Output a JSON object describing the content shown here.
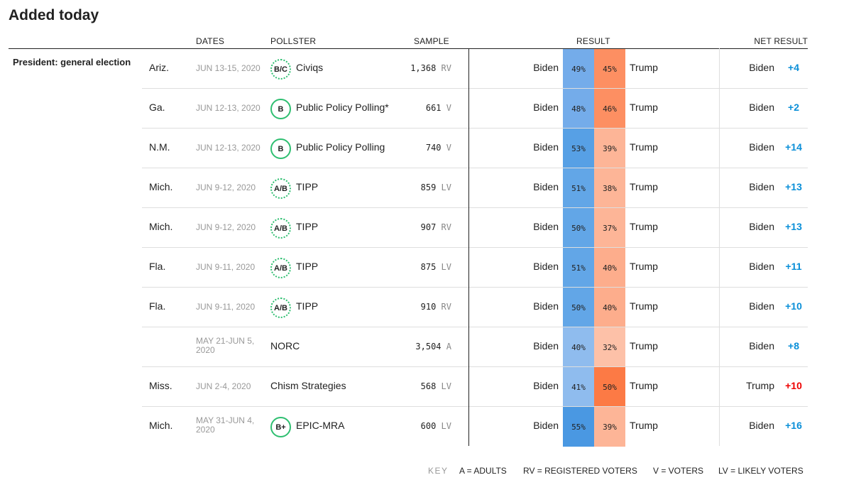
{
  "title": "Added today",
  "headers": {
    "dates": "DATES",
    "pollster": "POLLSTER",
    "sample": "SAMPLE",
    "result": "RESULT",
    "net": "NET RESULT"
  },
  "section_label": "President: general election",
  "colors": {
    "grade_ring": "#2fbf71",
    "biden_net": "#0a8fd8",
    "trump_net": "#ee0000"
  },
  "rows": [
    {
      "state": "Ariz.",
      "dates": "JUN 13-15, 2020",
      "grade": "B/C",
      "grade_style": "dotted",
      "pollster": "Civiqs",
      "sample": "1,368",
      "pop": "RV",
      "biden_label": "Biden",
      "biden": "49%",
      "trump": "45%",
      "trump_label": "Trump",
      "biden_color": "#74acea",
      "trump_color": "#fd8f62",
      "net_name": "Biden",
      "net_value": "+4",
      "net_party": "biden"
    },
    {
      "state": "Ga.",
      "dates": "JUN 12-13, 2020",
      "grade": "B",
      "grade_style": "solid",
      "pollster": "Public Policy Polling*",
      "sample": "661",
      "pop": "V",
      "biden_label": "Biden",
      "biden": "48%",
      "trump": "46%",
      "trump_label": "Trump",
      "biden_color": "#74acea",
      "trump_color": "#fd8f62",
      "net_name": "Biden",
      "net_value": "+2",
      "net_party": "biden"
    },
    {
      "state": "N.M.",
      "dates": "JUN 12-13, 2020",
      "grade": "B",
      "grade_style": "solid",
      "pollster": "Public Policy Polling",
      "sample": "740",
      "pop": "V",
      "biden_label": "Biden",
      "biden": "53%",
      "trump": "39%",
      "trump_label": "Trump",
      "biden_color": "#57a0e5",
      "trump_color": "#fdb597",
      "net_name": "Biden",
      "net_value": "+14",
      "net_party": "biden"
    },
    {
      "state": "Mich.",
      "dates": "JUN 9-12, 2020",
      "grade": "A/B",
      "grade_style": "dotted",
      "pollster": "TIPP",
      "sample": "859",
      "pop": "LV",
      "biden_label": "Biden",
      "biden": "51%",
      "trump": "38%",
      "trump_label": "Trump",
      "biden_color": "#62a6e7",
      "trump_color": "#fdb597",
      "net_name": "Biden",
      "net_value": "+13",
      "net_party": "biden"
    },
    {
      "state": "Mich.",
      "dates": "JUN 9-12, 2020",
      "grade": "A/B",
      "grade_style": "dotted",
      "pollster": "TIPP",
      "sample": "907",
      "pop": "RV",
      "biden_label": "Biden",
      "biden": "50%",
      "trump": "37%",
      "trump_label": "Trump",
      "biden_color": "#62a6e7",
      "trump_color": "#fdb597",
      "net_name": "Biden",
      "net_value": "+13",
      "net_party": "biden"
    },
    {
      "state": "Fla.",
      "dates": "JUN 9-11, 2020",
      "grade": "A/B",
      "grade_style": "dotted",
      "pollster": "TIPP",
      "sample": "875",
      "pop": "LV",
      "biden_label": "Biden",
      "biden": "51%",
      "trump": "40%",
      "trump_label": "Trump",
      "biden_color": "#62a6e7",
      "trump_color": "#fdad8c",
      "net_name": "Biden",
      "net_value": "+11",
      "net_party": "biden"
    },
    {
      "state": "Fla.",
      "dates": "JUN 9-11, 2020",
      "grade": "A/B",
      "grade_style": "dotted",
      "pollster": "TIPP",
      "sample": "910",
      "pop": "RV",
      "biden_label": "Biden",
      "biden": "50%",
      "trump": "40%",
      "trump_label": "Trump",
      "biden_color": "#62a6e7",
      "trump_color": "#fdad8c",
      "net_name": "Biden",
      "net_value": "+10",
      "net_party": "biden"
    },
    {
      "state": "",
      "dates": "MAY 21-JUN 5, 2020",
      "grade": "",
      "grade_style": "none",
      "pollster": "NORC",
      "sample": "3,504",
      "pop": "A",
      "biden_label": "Biden",
      "biden": "40%",
      "trump": "32%",
      "trump_label": "Trump",
      "biden_color": "#8fbcee",
      "trump_color": "#fdc1a8",
      "net_name": "Biden",
      "net_value": "+8",
      "net_party": "biden"
    },
    {
      "state": "Miss.",
      "dates": "JUN 2-4, 2020",
      "grade": "",
      "grade_style": "none",
      "pollster": "Chism Strategies",
      "sample": "568",
      "pop": "LV",
      "biden_label": "Biden",
      "biden": "41%",
      "trump": "50%",
      "trump_label": "Trump",
      "biden_color": "#8fbcee",
      "trump_color": "#fc7a45",
      "net_name": "Trump",
      "net_value": "+10",
      "net_party": "trump"
    },
    {
      "state": "Mich.",
      "dates": "MAY 31-JUN 4, 2020",
      "grade": "B+",
      "grade_style": "solid",
      "pollster": "EPIC-MRA",
      "sample": "600",
      "pop": "LV",
      "biden_label": "Biden",
      "biden": "55%",
      "trump": "39%",
      "trump_label": "Trump",
      "biden_color": "#4a98e2",
      "trump_color": "#fdb597",
      "net_name": "Biden",
      "net_value": "+16",
      "net_party": "biden"
    }
  ],
  "key": {
    "label": "KEY",
    "items": [
      "A = ADULTS",
      "RV = REGISTERED VOTERS",
      "V = VOTERS",
      "LV = LIKELY VOTERS"
    ]
  }
}
